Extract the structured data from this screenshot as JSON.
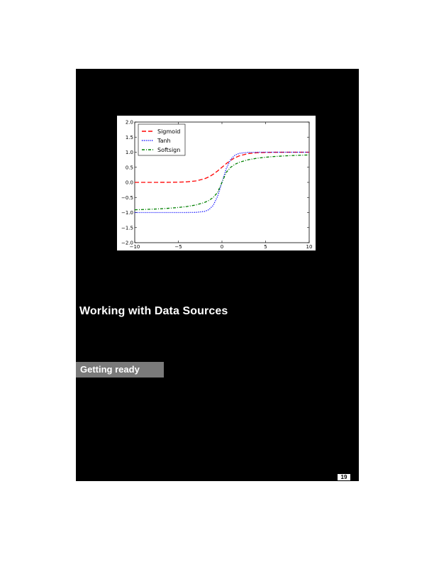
{
  "page": {
    "section_title": "Working with Data Sources",
    "subsection_title": "Getting ready",
    "page_number": "19"
  },
  "chart_data": {
    "type": "line",
    "title": "",
    "xlabel": "",
    "ylabel": "",
    "xlim": [
      -10,
      10
    ],
    "ylim": [
      -2.0,
      2.0
    ],
    "x_ticks": [
      -10,
      -5,
      0,
      5,
      10
    ],
    "x_tick_labels": [
      "−10",
      "−5",
      "0",
      "5",
      "10"
    ],
    "y_ticks": [
      2.0,
      1.5,
      1.0,
      0.5,
      0.0,
      -0.5,
      -1.0,
      -1.5,
      -2.0
    ],
    "y_tick_labels": [
      "2.0",
      "1.5",
      "1.0",
      "0.5",
      "0.0",
      "−0.5",
      "−1.0",
      "−1.5",
      "−2.0"
    ],
    "grid": false,
    "legend_position": "top-left",
    "x": [
      -10,
      -9,
      -8,
      -7,
      -6,
      -5,
      -4,
      -3,
      -2,
      -1.5,
      -1,
      -0.5,
      0,
      0.5,
      1,
      1.5,
      2,
      3,
      4,
      5,
      6,
      7,
      8,
      9,
      10
    ],
    "series": [
      {
        "name": "Sigmoid",
        "color": "#ff0000",
        "dash": "dashed",
        "values": [
          5e-05,
          0.0001,
          0.0003,
          0.0009,
          0.0025,
          0.0067,
          0.018,
          0.047,
          0.119,
          0.182,
          0.269,
          0.378,
          0.5,
          0.622,
          0.731,
          0.818,
          0.881,
          0.953,
          0.982,
          0.993,
          0.998,
          0.999,
          1.0,
          1.0,
          1.0
        ]
      },
      {
        "name": "Tanh",
        "color": "#0000ff",
        "dash": "dotted",
        "values": [
          -1.0,
          -1.0,
          -1.0,
          -1.0,
          -1.0,
          -1.0,
          -0.999,
          -0.995,
          -0.964,
          -0.905,
          -0.762,
          -0.462,
          0.0,
          0.462,
          0.762,
          0.905,
          0.964,
          0.995,
          0.999,
          1.0,
          1.0,
          1.0,
          1.0,
          1.0,
          1.0
        ]
      },
      {
        "name": "Softsign",
        "color": "#008000",
        "dash": "dashdot",
        "values": [
          -0.909,
          -0.9,
          -0.889,
          -0.875,
          -0.857,
          -0.833,
          -0.8,
          -0.75,
          -0.667,
          -0.6,
          -0.5,
          -0.333,
          0.0,
          0.333,
          0.5,
          0.6,
          0.667,
          0.75,
          0.8,
          0.833,
          0.857,
          0.875,
          0.889,
          0.9,
          0.909
        ]
      }
    ]
  }
}
